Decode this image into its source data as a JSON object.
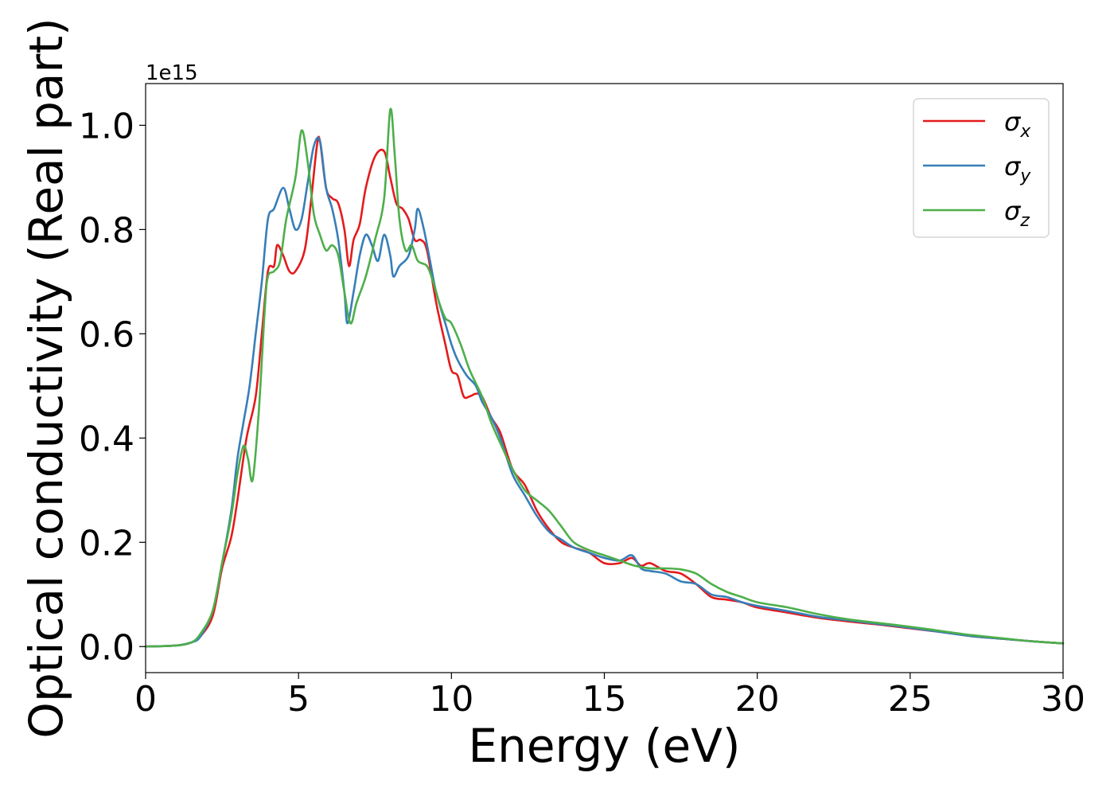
{
  "chart_data": {
    "type": "line",
    "xlabel": "Energy (eV)",
    "ylabel": "Optical conductivity (Real part)",
    "offset_label": "1e15",
    "xlim": [
      0,
      30
    ],
    "ylim": [
      -0.05,
      1.08
    ],
    "xticks": [
      0,
      5,
      10,
      15,
      20,
      25,
      30
    ],
    "xtick_labels": [
      "0",
      "5",
      "10",
      "15",
      "20",
      "25",
      "30"
    ],
    "yticks": [
      0.0,
      0.2,
      0.4,
      0.6,
      0.8,
      1.0
    ],
    "ytick_labels": [
      "0.0",
      "0.2",
      "0.4",
      "0.6",
      "0.8",
      "1.0"
    ],
    "grid": false,
    "legend_position": "top-right",
    "series": [
      {
        "name": "σx",
        "legend_base": "σ",
        "legend_sub": "x",
        "color": "#e41a1c",
        "points": [
          [
            0,
            0
          ],
          [
            1,
            0.002
          ],
          [
            1.5,
            0.008
          ],
          [
            1.8,
            0.02
          ],
          [
            2.2,
            0.06
          ],
          [
            2.5,
            0.15
          ],
          [
            2.8,
            0.21
          ],
          [
            3.0,
            0.28
          ],
          [
            3.3,
            0.4
          ],
          [
            3.6,
            0.48
          ],
          [
            3.8,
            0.6
          ],
          [
            4.0,
            0.72
          ],
          [
            4.2,
            0.73
          ],
          [
            4.3,
            0.77
          ],
          [
            4.5,
            0.75
          ],
          [
            4.7,
            0.72
          ],
          [
            4.9,
            0.72
          ],
          [
            5.2,
            0.76
          ],
          [
            5.4,
            0.85
          ],
          [
            5.6,
            0.96
          ],
          [
            5.7,
            0.97
          ],
          [
            5.9,
            0.88
          ],
          [
            6.1,
            0.86
          ],
          [
            6.3,
            0.85
          ],
          [
            6.5,
            0.8
          ],
          [
            6.65,
            0.73
          ],
          [
            6.8,
            0.78
          ],
          [
            7.0,
            0.81
          ],
          [
            7.2,
            0.88
          ],
          [
            7.5,
            0.94
          ],
          [
            7.8,
            0.95
          ],
          [
            8.0,
            0.9
          ],
          [
            8.2,
            0.85
          ],
          [
            8.4,
            0.84
          ],
          [
            8.6,
            0.82
          ],
          [
            8.8,
            0.78
          ],
          [
            9.0,
            0.78
          ],
          [
            9.2,
            0.76
          ],
          [
            9.5,
            0.66
          ],
          [
            9.8,
            0.58
          ],
          [
            10.0,
            0.53
          ],
          [
            10.2,
            0.52
          ],
          [
            10.4,
            0.48
          ],
          [
            10.6,
            0.48
          ],
          [
            10.8,
            0.485
          ],
          [
            11.0,
            0.48
          ],
          [
            11.3,
            0.44
          ],
          [
            11.6,
            0.41
          ],
          [
            12.0,
            0.34
          ],
          [
            12.4,
            0.31
          ],
          [
            12.8,
            0.26
          ],
          [
            13.2,
            0.225
          ],
          [
            13.6,
            0.2
          ],
          [
            14.0,
            0.19
          ],
          [
            14.5,
            0.18
          ],
          [
            15.0,
            0.16
          ],
          [
            15.5,
            0.16
          ],
          [
            15.9,
            0.17
          ],
          [
            16.2,
            0.155
          ],
          [
            16.5,
            0.16
          ],
          [
            17.0,
            0.145
          ],
          [
            17.5,
            0.14
          ],
          [
            18.0,
            0.12
          ],
          [
            18.5,
            0.095
          ],
          [
            19.0,
            0.09
          ],
          [
            19.5,
            0.085
          ],
          [
            20.0,
            0.075
          ],
          [
            21.0,
            0.065
          ],
          [
            22.0,
            0.055
          ],
          [
            23.0,
            0.048
          ],
          [
            24.0,
            0.042
          ],
          [
            25.0,
            0.035
          ],
          [
            26.0,
            0.028
          ],
          [
            27.0,
            0.02
          ],
          [
            28.0,
            0.015
          ],
          [
            29.0,
            0.01
          ],
          [
            30.0,
            0.006
          ]
        ]
      },
      {
        "name": "σy",
        "legend_base": "σ",
        "legend_sub": "y",
        "color": "#377eb8",
        "points": [
          [
            0,
            0
          ],
          [
            1,
            0.002
          ],
          [
            1.5,
            0.008
          ],
          [
            1.8,
            0.02
          ],
          [
            2.2,
            0.07
          ],
          [
            2.5,
            0.16
          ],
          [
            2.8,
            0.26
          ],
          [
            3.0,
            0.36
          ],
          [
            3.2,
            0.43
          ],
          [
            3.4,
            0.5
          ],
          [
            3.6,
            0.6
          ],
          [
            3.8,
            0.7
          ],
          [
            4.0,
            0.82
          ],
          [
            4.2,
            0.84
          ],
          [
            4.5,
            0.88
          ],
          [
            4.7,
            0.84
          ],
          [
            4.9,
            0.8
          ],
          [
            5.1,
            0.82
          ],
          [
            5.3,
            0.89
          ],
          [
            5.5,
            0.96
          ],
          [
            5.7,
            0.97
          ],
          [
            5.9,
            0.88
          ],
          [
            6.1,
            0.84
          ],
          [
            6.3,
            0.78
          ],
          [
            6.5,
            0.68
          ],
          [
            6.6,
            0.62
          ],
          [
            6.8,
            0.68
          ],
          [
            7.0,
            0.75
          ],
          [
            7.2,
            0.79
          ],
          [
            7.4,
            0.77
          ],
          [
            7.6,
            0.74
          ],
          [
            7.8,
            0.79
          ],
          [
            8.0,
            0.75
          ],
          [
            8.1,
            0.71
          ],
          [
            8.3,
            0.73
          ],
          [
            8.6,
            0.75
          ],
          [
            8.8,
            0.8
          ],
          [
            8.9,
            0.84
          ],
          [
            9.1,
            0.8
          ],
          [
            9.3,
            0.74
          ],
          [
            9.5,
            0.68
          ],
          [
            9.8,
            0.62
          ],
          [
            10.0,
            0.58
          ],
          [
            10.2,
            0.55
          ],
          [
            10.5,
            0.52
          ],
          [
            10.8,
            0.5
          ],
          [
            11.0,
            0.47
          ],
          [
            11.3,
            0.44
          ],
          [
            11.6,
            0.4
          ],
          [
            12.0,
            0.33
          ],
          [
            12.4,
            0.29
          ],
          [
            12.8,
            0.25
          ],
          [
            13.2,
            0.22
          ],
          [
            13.6,
            0.205
          ],
          [
            14.0,
            0.19
          ],
          [
            14.5,
            0.18
          ],
          [
            15.0,
            0.17
          ],
          [
            15.5,
            0.165
          ],
          [
            15.9,
            0.175
          ],
          [
            16.2,
            0.15
          ],
          [
            16.5,
            0.145
          ],
          [
            17.0,
            0.14
          ],
          [
            17.5,
            0.125
          ],
          [
            18.0,
            0.12
          ],
          [
            18.5,
            0.1
          ],
          [
            19.0,
            0.095
          ],
          [
            19.5,
            0.085
          ],
          [
            20.0,
            0.078
          ],
          [
            21.0,
            0.068
          ],
          [
            22.0,
            0.057
          ],
          [
            23.0,
            0.05
          ],
          [
            24.0,
            0.043
          ],
          [
            25.0,
            0.036
          ],
          [
            26.0,
            0.028
          ],
          [
            27.0,
            0.02
          ],
          [
            28.0,
            0.015
          ],
          [
            29.0,
            0.01
          ],
          [
            30.0,
            0.006
          ]
        ]
      },
      {
        "name": "σz",
        "legend_base": "σ",
        "legend_sub": "z",
        "color": "#4daf4a",
        "points": [
          [
            0,
            0
          ],
          [
            1,
            0.002
          ],
          [
            1.5,
            0.008
          ],
          [
            1.8,
            0.025
          ],
          [
            2.2,
            0.07
          ],
          [
            2.5,
            0.16
          ],
          [
            2.8,
            0.25
          ],
          [
            3.0,
            0.33
          ],
          [
            3.2,
            0.385
          ],
          [
            3.35,
            0.36
          ],
          [
            3.5,
            0.32
          ],
          [
            3.7,
            0.45
          ],
          [
            3.9,
            0.65
          ],
          [
            4.0,
            0.71
          ],
          [
            4.2,
            0.72
          ],
          [
            4.4,
            0.74
          ],
          [
            4.6,
            0.82
          ],
          [
            4.9,
            0.9
          ],
          [
            5.1,
            0.99
          ],
          [
            5.3,
            0.93
          ],
          [
            5.5,
            0.83
          ],
          [
            5.7,
            0.79
          ],
          [
            5.9,
            0.76
          ],
          [
            6.1,
            0.77
          ],
          [
            6.3,
            0.75
          ],
          [
            6.5,
            0.68
          ],
          [
            6.7,
            0.62
          ],
          [
            6.9,
            0.66
          ],
          [
            7.2,
            0.71
          ],
          [
            7.5,
            0.78
          ],
          [
            7.8,
            0.86
          ],
          [
            8.0,
            1.03
          ],
          [
            8.15,
            0.94
          ],
          [
            8.3,
            0.82
          ],
          [
            8.5,
            0.76
          ],
          [
            8.7,
            0.77
          ],
          [
            8.9,
            0.74
          ],
          [
            9.2,
            0.73
          ],
          [
            9.4,
            0.7
          ],
          [
            9.6,
            0.66
          ],
          [
            9.8,
            0.63
          ],
          [
            10.0,
            0.62
          ],
          [
            10.3,
            0.58
          ],
          [
            10.6,
            0.53
          ],
          [
            11.0,
            0.48
          ],
          [
            11.3,
            0.43
          ],
          [
            11.6,
            0.39
          ],
          [
            12.0,
            0.34
          ],
          [
            12.4,
            0.3
          ],
          [
            12.8,
            0.28
          ],
          [
            13.2,
            0.26
          ],
          [
            13.6,
            0.23
          ],
          [
            14.0,
            0.2
          ],
          [
            14.5,
            0.185
          ],
          [
            15.0,
            0.175
          ],
          [
            15.5,
            0.165
          ],
          [
            16.0,
            0.155
          ],
          [
            16.5,
            0.15
          ],
          [
            17.0,
            0.15
          ],
          [
            17.5,
            0.148
          ],
          [
            18.0,
            0.14
          ],
          [
            18.5,
            0.12
          ],
          [
            19.0,
            0.105
          ],
          [
            19.5,
            0.095
          ],
          [
            20.0,
            0.085
          ],
          [
            21.0,
            0.075
          ],
          [
            22.0,
            0.062
          ],
          [
            23.0,
            0.052
          ],
          [
            24.0,
            0.045
          ],
          [
            25.0,
            0.038
          ],
          [
            26.0,
            0.03
          ],
          [
            27.0,
            0.022
          ],
          [
            28.0,
            0.016
          ],
          [
            29.0,
            0.01
          ],
          [
            30.0,
            0.006
          ]
        ]
      }
    ]
  }
}
